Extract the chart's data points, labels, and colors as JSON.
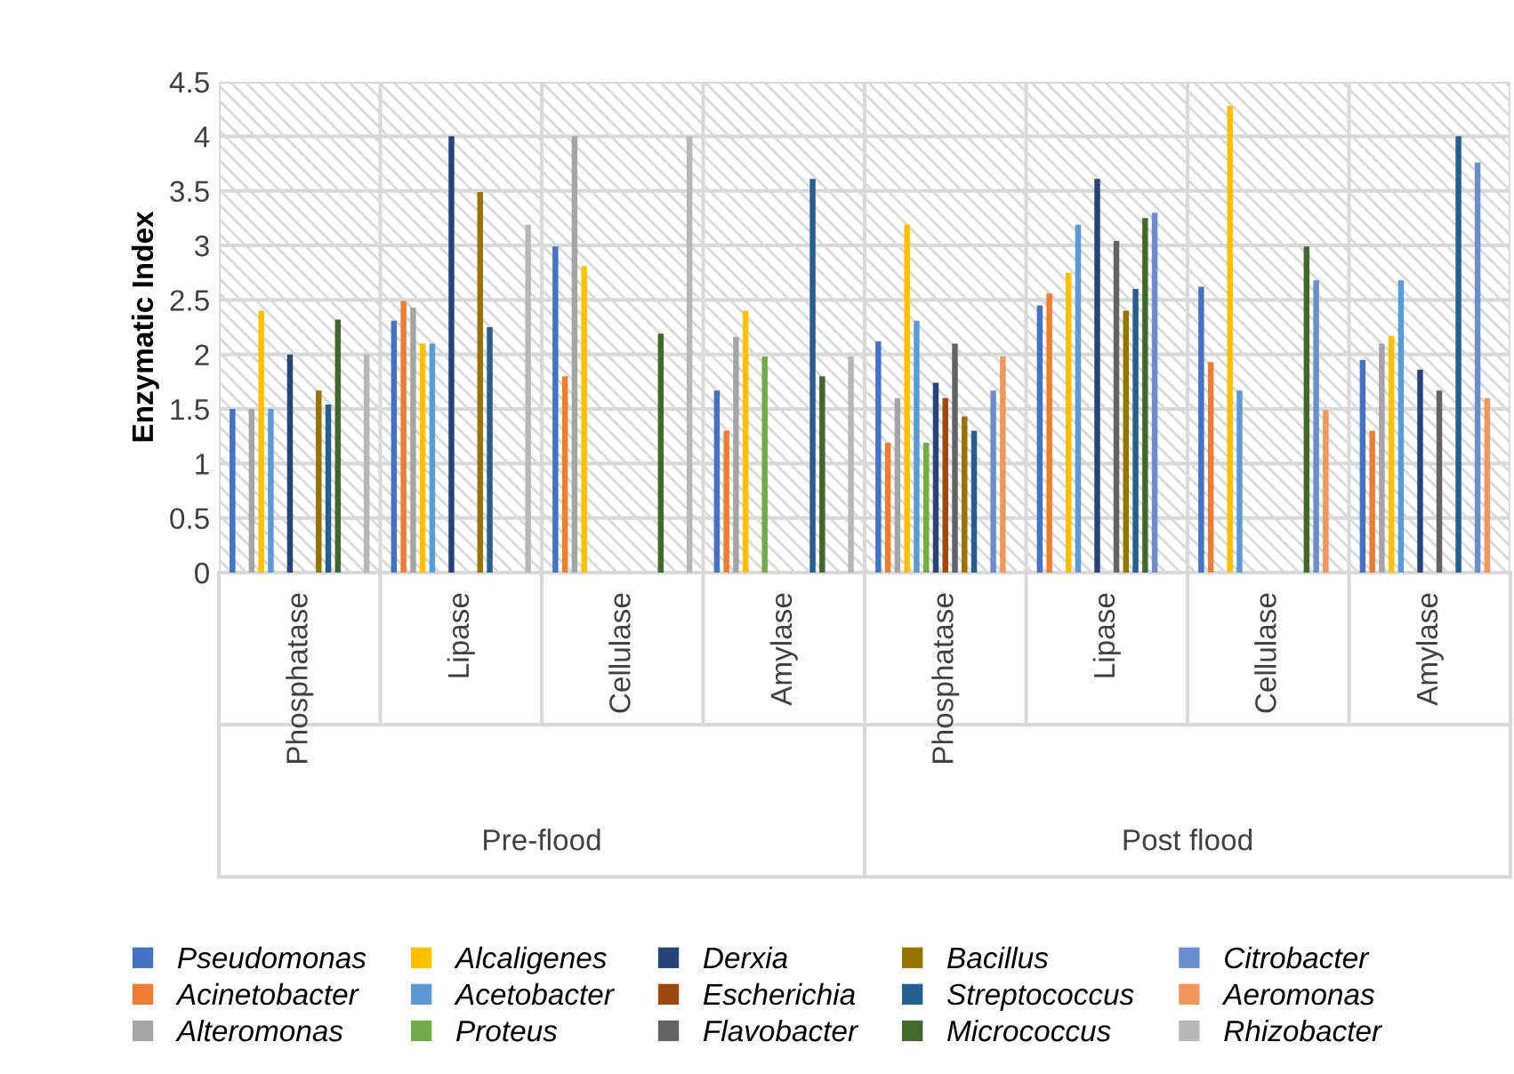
{
  "chart_data": {
    "type": "bar",
    "ylabel": "Enzymatic Index",
    "categories": [
      "Phosphatase",
      "Lipase",
      "Cellulase",
      "Amylase",
      "Phosphatase",
      "Lipase",
      "Cellulase",
      "Amylase"
    ],
    "annotations": [
      "Pre-flood",
      "Post flood"
    ],
    "ylim": [
      0,
      4.5
    ],
    "yticks": [
      0,
      0.5,
      1,
      1.5,
      2,
      2.5,
      3,
      3.5,
      4,
      4.5
    ],
    "grid": true,
    "legend": "bottom",
    "series": [
      {
        "name": "Pseudomonas",
        "color": "#4472c4",
        "values": [
          1.5,
          2.31,
          2.99,
          1.67,
          2.12,
          2.45,
          2.62,
          1.95
        ]
      },
      {
        "name": "Acinetobacter",
        "color": "#ed7d31",
        "values": [
          null,
          2.49,
          1.8,
          1.3,
          1.19,
          2.56,
          1.93,
          1.3
        ]
      },
      {
        "name": "Alteromonas",
        "color": "#a5a5a5",
        "values": [
          1.5,
          2.43,
          4.0,
          2.16,
          1.6,
          null,
          null,
          2.1
        ]
      },
      {
        "name": "Alcaligenes",
        "color": "#ffc000",
        "values": [
          2.4,
          2.1,
          2.81,
          2.4,
          3.19,
          2.75,
          4.28,
          2.17
        ]
      },
      {
        "name": "Acetobacter",
        "color": "#5b9bd5",
        "values": [
          1.5,
          2.1,
          null,
          null,
          2.31,
          3.19,
          1.67,
          2.68
        ]
      },
      {
        "name": "Proteus",
        "color": "#70ad47",
        "values": [
          null,
          null,
          null,
          1.98,
          1.19,
          null,
          null,
          null
        ]
      },
      {
        "name": "Derxia",
        "color": "#264478",
        "values": [
          2.0,
          4.0,
          null,
          null,
          1.74,
          3.61,
          null,
          1.86
        ]
      },
      {
        "name": "Escherichia",
        "color": "#9e480e",
        "values": [
          null,
          null,
          null,
          null,
          1.6,
          null,
          null,
          null
        ]
      },
      {
        "name": "Flavobacter",
        "color": "#636363",
        "values": [
          null,
          null,
          null,
          null,
          2.1,
          3.04,
          null,
          1.67
        ]
      },
      {
        "name": "Bacillus",
        "color": "#997300",
        "values": [
          1.67,
          3.49,
          null,
          null,
          1.43,
          2.4,
          null,
          null
        ]
      },
      {
        "name": "Streptococcus",
        "color": "#255e91",
        "values": [
          1.54,
          2.25,
          null,
          3.61,
          1.3,
          2.6,
          null,
          4.0
        ]
      },
      {
        "name": "Micrococcus",
        "color": "#43682b",
        "values": [
          2.32,
          null,
          2.19,
          1.8,
          null,
          3.25,
          2.99,
          null
        ]
      },
      {
        "name": "Citrobacter",
        "color": "#698ed0",
        "values": [
          null,
          null,
          null,
          null,
          1.67,
          3.3,
          2.68,
          3.76
        ]
      },
      {
        "name": "Aeromonas",
        "color": "#f1975a",
        "values": [
          null,
          null,
          null,
          null,
          1.98,
          null,
          1.49,
          1.6
        ]
      },
      {
        "name": "Rhizobacter",
        "color": "#b7b7b7",
        "values": [
          2.0,
          3.19,
          4.0,
          1.98,
          null,
          null,
          null,
          null
        ]
      }
    ]
  }
}
